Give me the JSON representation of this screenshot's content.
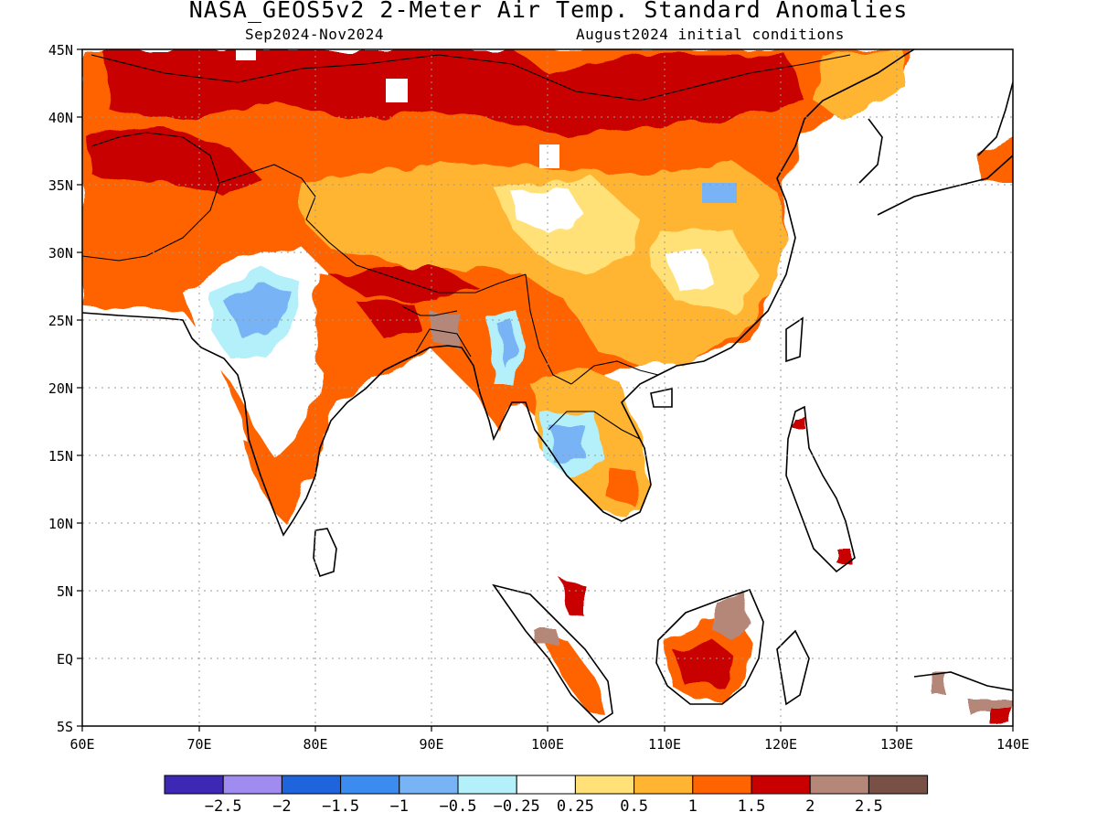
{
  "header": {
    "title": "NASA_GEOS5v2 2-Meter Air Temp. Standard Anomalies",
    "period": "Sep2024-Nov2024",
    "initial_conditions": "August2024 initial conditions"
  },
  "map": {
    "lat_labels": [
      "45N",
      "40N",
      "35N",
      "30N",
      "25N",
      "20N",
      "15N",
      "10N",
      "5N",
      "EQ",
      "5S"
    ],
    "lon_labels": [
      "60E",
      "70E",
      "80E",
      "90E",
      "100E",
      "110E",
      "120E",
      "130E",
      "140E"
    ]
  },
  "colorbar": {
    "colors": [
      "#3c28b4",
      "#a08cf0",
      "#1e64dc",
      "#3c8cf0",
      "#78b4f5",
      "#b4f0fa",
      "#ffffff",
      "#ffe178",
      "#ffb432",
      "#ff6400",
      "#c80000",
      "#b48778",
      "#785046"
    ],
    "labels": [
      "-2.5",
      "-2",
      "-1.5",
      "-1",
      "-0.5",
      "-0.25",
      "0.25",
      "0.5",
      "1",
      "1.5",
      "2",
      "2.5"
    ]
  }
}
